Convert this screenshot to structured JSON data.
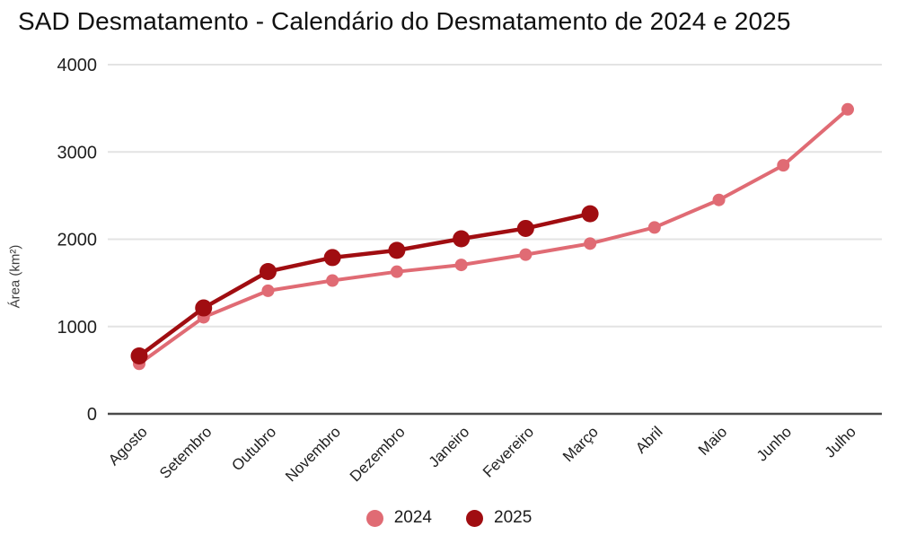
{
  "chart_data": {
    "type": "line",
    "title": "SAD Desmatamento - Calendário do Desmatamento de 2024 e 2025",
    "ylabel": "Área (km²)",
    "xlabel": "",
    "categories": [
      "Agosto",
      "Setembro",
      "Outubro",
      "Novembro",
      "Dezembro",
      "Janeiro",
      "Fevereiro",
      "Março",
      "Abril",
      "Maio",
      "Junho",
      "Julho"
    ],
    "series": [
      {
        "name": "2024",
        "color": "#e06b74",
        "point_radius": 7,
        "line_width": 4,
        "values": [
          573,
          1106,
          1410,
          1527,
          1628,
          1706,
          1824,
          1950,
          2135,
          2450,
          2847,
          3488
        ]
      },
      {
        "name": "2025",
        "color": "#a00d11",
        "point_radius": 9.5,
        "line_width": 4.5,
        "values": [
          663,
          1213,
          1630,
          1790,
          1873,
          2005,
          2124,
          2292
        ]
      }
    ],
    "ylim": [
      0,
      4000
    ],
    "yticks": [
      0,
      1000,
      2000,
      3000,
      4000
    ],
    "grid": true,
    "legend_position": "bottom",
    "colors": {
      "grid_line": "#e3e3e3",
      "axis_line": "#4a4a4a",
      "tick_label": "#1f1f1f",
      "title_text": "#111111"
    }
  }
}
